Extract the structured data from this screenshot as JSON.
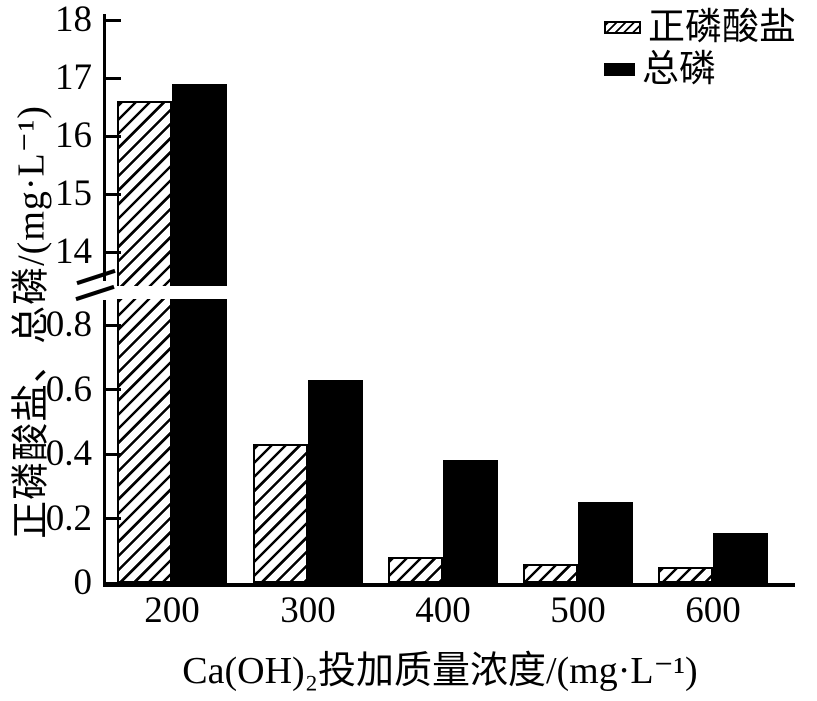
{
  "figure": {
    "background": "#ffffff",
    "ink": "#000000"
  },
  "legend": {
    "position": "top-right",
    "items": [
      {
        "label": "正磷酸盐",
        "swatch": "hatched"
      },
      {
        "label": "总磷",
        "swatch": "solid"
      }
    ]
  },
  "chart_data": {
    "type": "bar",
    "title": "",
    "xlabel": "Ca(OH)₂投加质量浓度/(mg·L⁻¹)",
    "ylabel": "正磷酸盐、总磷/(mg·L⁻¹)",
    "categories": [
      "200",
      "300",
      "400",
      "500",
      "600"
    ],
    "series": [
      {
        "name": "正磷酸盐",
        "key": "orthophosphate",
        "style": "hatched",
        "values": [
          16.6,
          0.43,
          0.08,
          0.06,
          0.05
        ]
      },
      {
        "name": "总磷",
        "key": "total-phosphorus",
        "style": "solid",
        "values": [
          16.9,
          0.63,
          0.38,
          0.25,
          0.155
        ]
      }
    ],
    "y_axis": {
      "broken": true,
      "upper_ticks": [
        "14",
        "15",
        "16",
        "17",
        "18"
      ],
      "lower_ticks": [
        "0",
        "0.2",
        "0.4",
        "0.6",
        "0.8"
      ],
      "upper_range": [
        13.55,
        18.1
      ],
      "lower_range": [
        0,
        0.9
      ]
    },
    "grid": false,
    "legend_position": "top-right"
  }
}
